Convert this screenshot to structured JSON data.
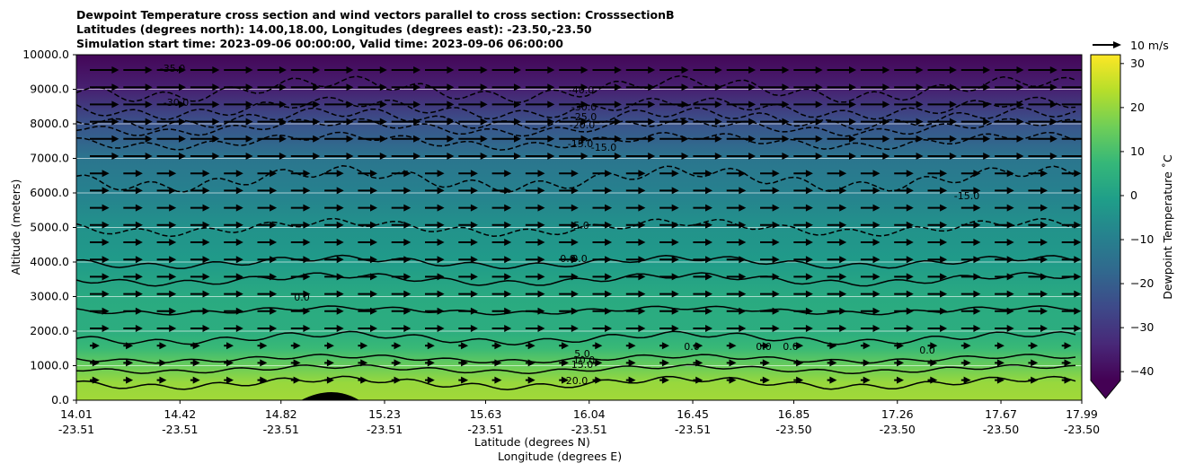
{
  "title_lines": [
    "Dewpoint Temperature cross section and wind vectors parallel to cross section: CrosssectionB",
    "Latitudes (degrees north): 14.00,18.00, Longitudes (degrees east): -23.50,-23.50",
    "Simulation start time: 2023-09-06 00:00:00, Valid time: 2023-09-06 06:00:00"
  ],
  "chart_data": {
    "type": "contour_cross_section",
    "ylabel": "Altitude (meters)",
    "xlabel_lat": "Latitude (degrees N)",
    "xlabel_lon": "Longitude (degrees E)",
    "ylim": [
      0,
      10000
    ],
    "yticks": [
      "0.0",
      "1000.0",
      "2000.0",
      "3000.0",
      "4000.0",
      "5000.0",
      "6000.0",
      "7000.0",
      "8000.0",
      "9000.0",
      "10000.0"
    ],
    "xticks_lat": [
      "14.01",
      "14.42",
      "14.82",
      "15.23",
      "15.63",
      "16.04",
      "16.45",
      "16.85",
      "17.26",
      "17.67",
      "17.99"
    ],
    "xticks_lon": [
      "-23.51",
      "-23.51",
      "-23.51",
      "-23.51",
      "-23.51",
      "-23.51",
      "-23.51",
      "-23.50",
      "-23.50",
      "-23.50",
      "-23.50"
    ],
    "colorbar": {
      "label": "Dewpoint Temperature ˚C",
      "range": [
        -45,
        32
      ],
      "ticks": [
        "30",
        "20",
        "10",
        "0",
        "−10",
        "−20",
        "−30",
        "−40"
      ],
      "extend": "min",
      "colormap": "viridis"
    },
    "contour_labels": [
      "-40.0",
      "-30.0",
      "-25.0",
      "-20.0",
      "-15.0",
      "-15.0",
      "-35.0",
      "-30.0",
      "-5.0",
      "0.0",
      "0.0",
      "0.0",
      "-15.0",
      "5.0",
      "10.0",
      "15.0",
      "20.0",
      "0.0",
      "0.0",
      "0.0",
      "0.0"
    ],
    "quiver_key": "10 m/s",
    "wind": {
      "direction": "positive (left to right)",
      "upper_level_m_s": 9,
      "lower_level_m_s": 6,
      "surface_m_s": 3
    }
  }
}
